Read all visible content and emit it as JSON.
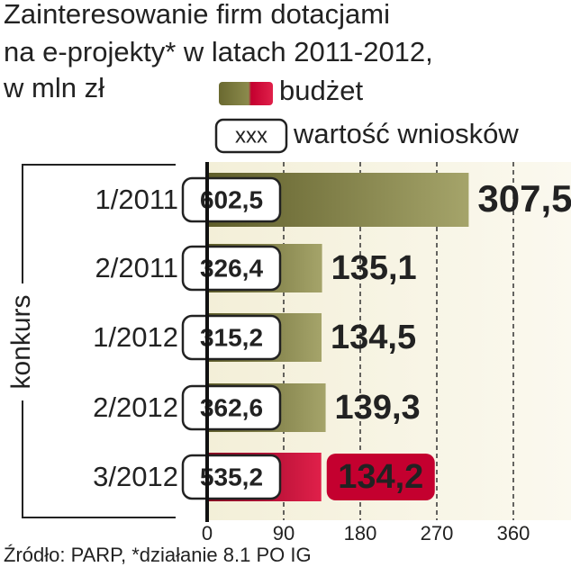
{
  "chart_data": {
    "type": "bar",
    "orientation": "horizontal",
    "title": [
      "Zainteresowanie firm dotacjami",
      "na e-projekty* w latach 2011-2012,",
      "w mln zł"
    ],
    "y_label": "konkurs",
    "legend_sample": "xxx",
    "source": "Źródło: PARP, *działanie 8.1 PO IG",
    "categories": [
      "1/2011",
      "2/2011",
      "1/2012",
      "2/2012",
      "3/2012"
    ],
    "series": [
      {
        "name": "budżet",
        "color": "#8b8a4c",
        "highlight_color": "#c4002f",
        "highlight": [
          false,
          false,
          false,
          false,
          true
        ],
        "values": [
          307.5,
          135.1,
          134.5,
          139.3,
          134.2
        ],
        "value_labels": [
          "307,5",
          "135,1",
          "134,5",
          "139,3",
          "134,2"
        ]
      },
      {
        "name": "wartość wniosków",
        "values": [
          602.5,
          326.4,
          315.2,
          362.6,
          535.2
        ],
        "value_labels": [
          "602,5",
          "326,4",
          "315,2",
          "362,6",
          "535,2"
        ]
      }
    ],
    "xlim": [
      0,
      360
    ],
    "xticks": [
      0,
      90,
      180,
      270,
      360
    ],
    "grid": true
  }
}
